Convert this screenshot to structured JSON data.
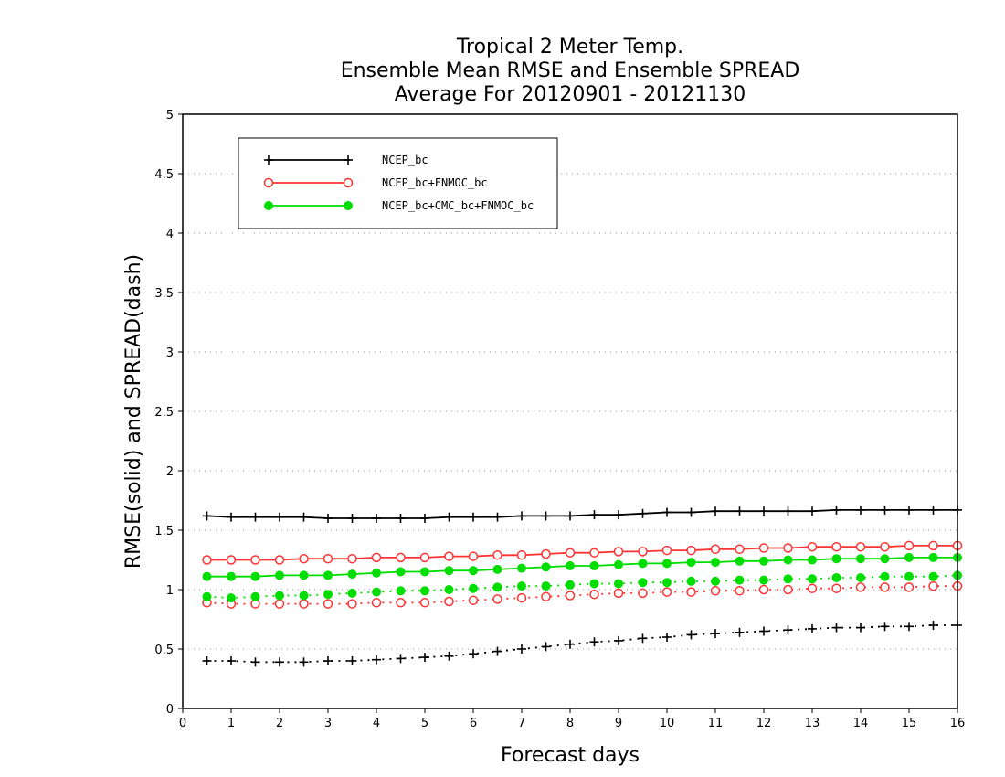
{
  "chart_data": {
    "type": "line",
    "title_lines": [
      "Tropical 2 Meter Temp.",
      "Ensemble Mean RMSE and Ensemble SPREAD",
      "Average For 20120901 - 20121130"
    ],
    "xlabel": "Forecast days",
    "ylabel": "RMSE(solid) and SPREAD(dash)",
    "xlim": [
      0,
      16
    ],
    "ylim": [
      0,
      5
    ],
    "x_ticks": [
      "0",
      "1",
      "2",
      "3",
      "4",
      "5",
      "6",
      "7",
      "8",
      "9",
      "10",
      "11",
      "12",
      "13",
      "14",
      "15",
      "16"
    ],
    "y_ticks": [
      "0",
      "0.5",
      "1",
      "1.5",
      "2",
      "2.5",
      "3",
      "3.5",
      "4",
      "4.5",
      "5"
    ],
    "grid": "horizontal dotted",
    "legend_position": "top-left",
    "x": [
      0.5,
      1,
      1.5,
      2,
      2.5,
      3,
      3.5,
      4,
      4.5,
      5,
      5.5,
      6,
      6.5,
      7,
      7.5,
      8,
      8.5,
      9,
      9.5,
      10,
      10.5,
      11,
      11.5,
      12,
      12.5,
      13,
      13.5,
      14,
      14.5,
      15,
      15.5,
      16
    ],
    "series": [
      {
        "name": "NCEP_bc",
        "color": "#000000",
        "marker": "plus",
        "rmse": [
          1.62,
          1.61,
          1.61,
          1.61,
          1.61,
          1.6,
          1.6,
          1.6,
          1.6,
          1.6,
          1.61,
          1.61,
          1.61,
          1.62,
          1.62,
          1.62,
          1.63,
          1.63,
          1.64,
          1.65,
          1.65,
          1.66,
          1.66,
          1.66,
          1.66,
          1.66,
          1.67,
          1.67,
          1.67,
          1.67,
          1.67,
          1.67
        ],
        "spread": [
          0.4,
          0.4,
          0.39,
          0.39,
          0.39,
          0.4,
          0.4,
          0.41,
          0.42,
          0.43,
          0.44,
          0.46,
          0.48,
          0.5,
          0.52,
          0.54,
          0.56,
          0.57,
          0.59,
          0.6,
          0.62,
          0.63,
          0.64,
          0.65,
          0.66,
          0.67,
          0.68,
          0.68,
          0.69,
          0.69,
          0.7,
          0.7
        ]
      },
      {
        "name": "NCEP_bc+FNMOC_bc",
        "color": "#ff3333",
        "marker": "open-circle",
        "rmse": [
          1.25,
          1.25,
          1.25,
          1.25,
          1.26,
          1.26,
          1.26,
          1.27,
          1.27,
          1.27,
          1.28,
          1.28,
          1.29,
          1.29,
          1.3,
          1.31,
          1.31,
          1.32,
          1.32,
          1.33,
          1.33,
          1.34,
          1.34,
          1.35,
          1.35,
          1.36,
          1.36,
          1.36,
          1.36,
          1.37,
          1.37,
          1.37
        ],
        "spread": [
          0.89,
          0.88,
          0.88,
          0.88,
          0.88,
          0.88,
          0.88,
          0.89,
          0.89,
          0.89,
          0.9,
          0.91,
          0.92,
          0.93,
          0.94,
          0.95,
          0.96,
          0.97,
          0.97,
          0.98,
          0.98,
          0.99,
          0.99,
          1.0,
          1.0,
          1.01,
          1.01,
          1.02,
          1.02,
          1.02,
          1.03,
          1.03
        ]
      },
      {
        "name": "NCEP_bc+CMC_bc+FNMOC_bc",
        "color": "#00dd00",
        "marker": "filled-circle",
        "rmse": [
          1.11,
          1.11,
          1.11,
          1.12,
          1.12,
          1.12,
          1.13,
          1.14,
          1.15,
          1.15,
          1.16,
          1.16,
          1.17,
          1.18,
          1.19,
          1.2,
          1.2,
          1.21,
          1.22,
          1.22,
          1.23,
          1.23,
          1.24,
          1.24,
          1.25,
          1.25,
          1.26,
          1.26,
          1.26,
          1.27,
          1.27,
          1.27
        ],
        "spread": [
          0.94,
          0.93,
          0.94,
          0.95,
          0.95,
          0.96,
          0.97,
          0.98,
          0.99,
          0.99,
          1.0,
          1.01,
          1.02,
          1.03,
          1.03,
          1.04,
          1.05,
          1.05,
          1.06,
          1.06,
          1.07,
          1.07,
          1.08,
          1.08,
          1.09,
          1.09,
          1.1,
          1.1,
          1.11,
          1.11,
          1.11,
          1.12
        ]
      }
    ]
  }
}
